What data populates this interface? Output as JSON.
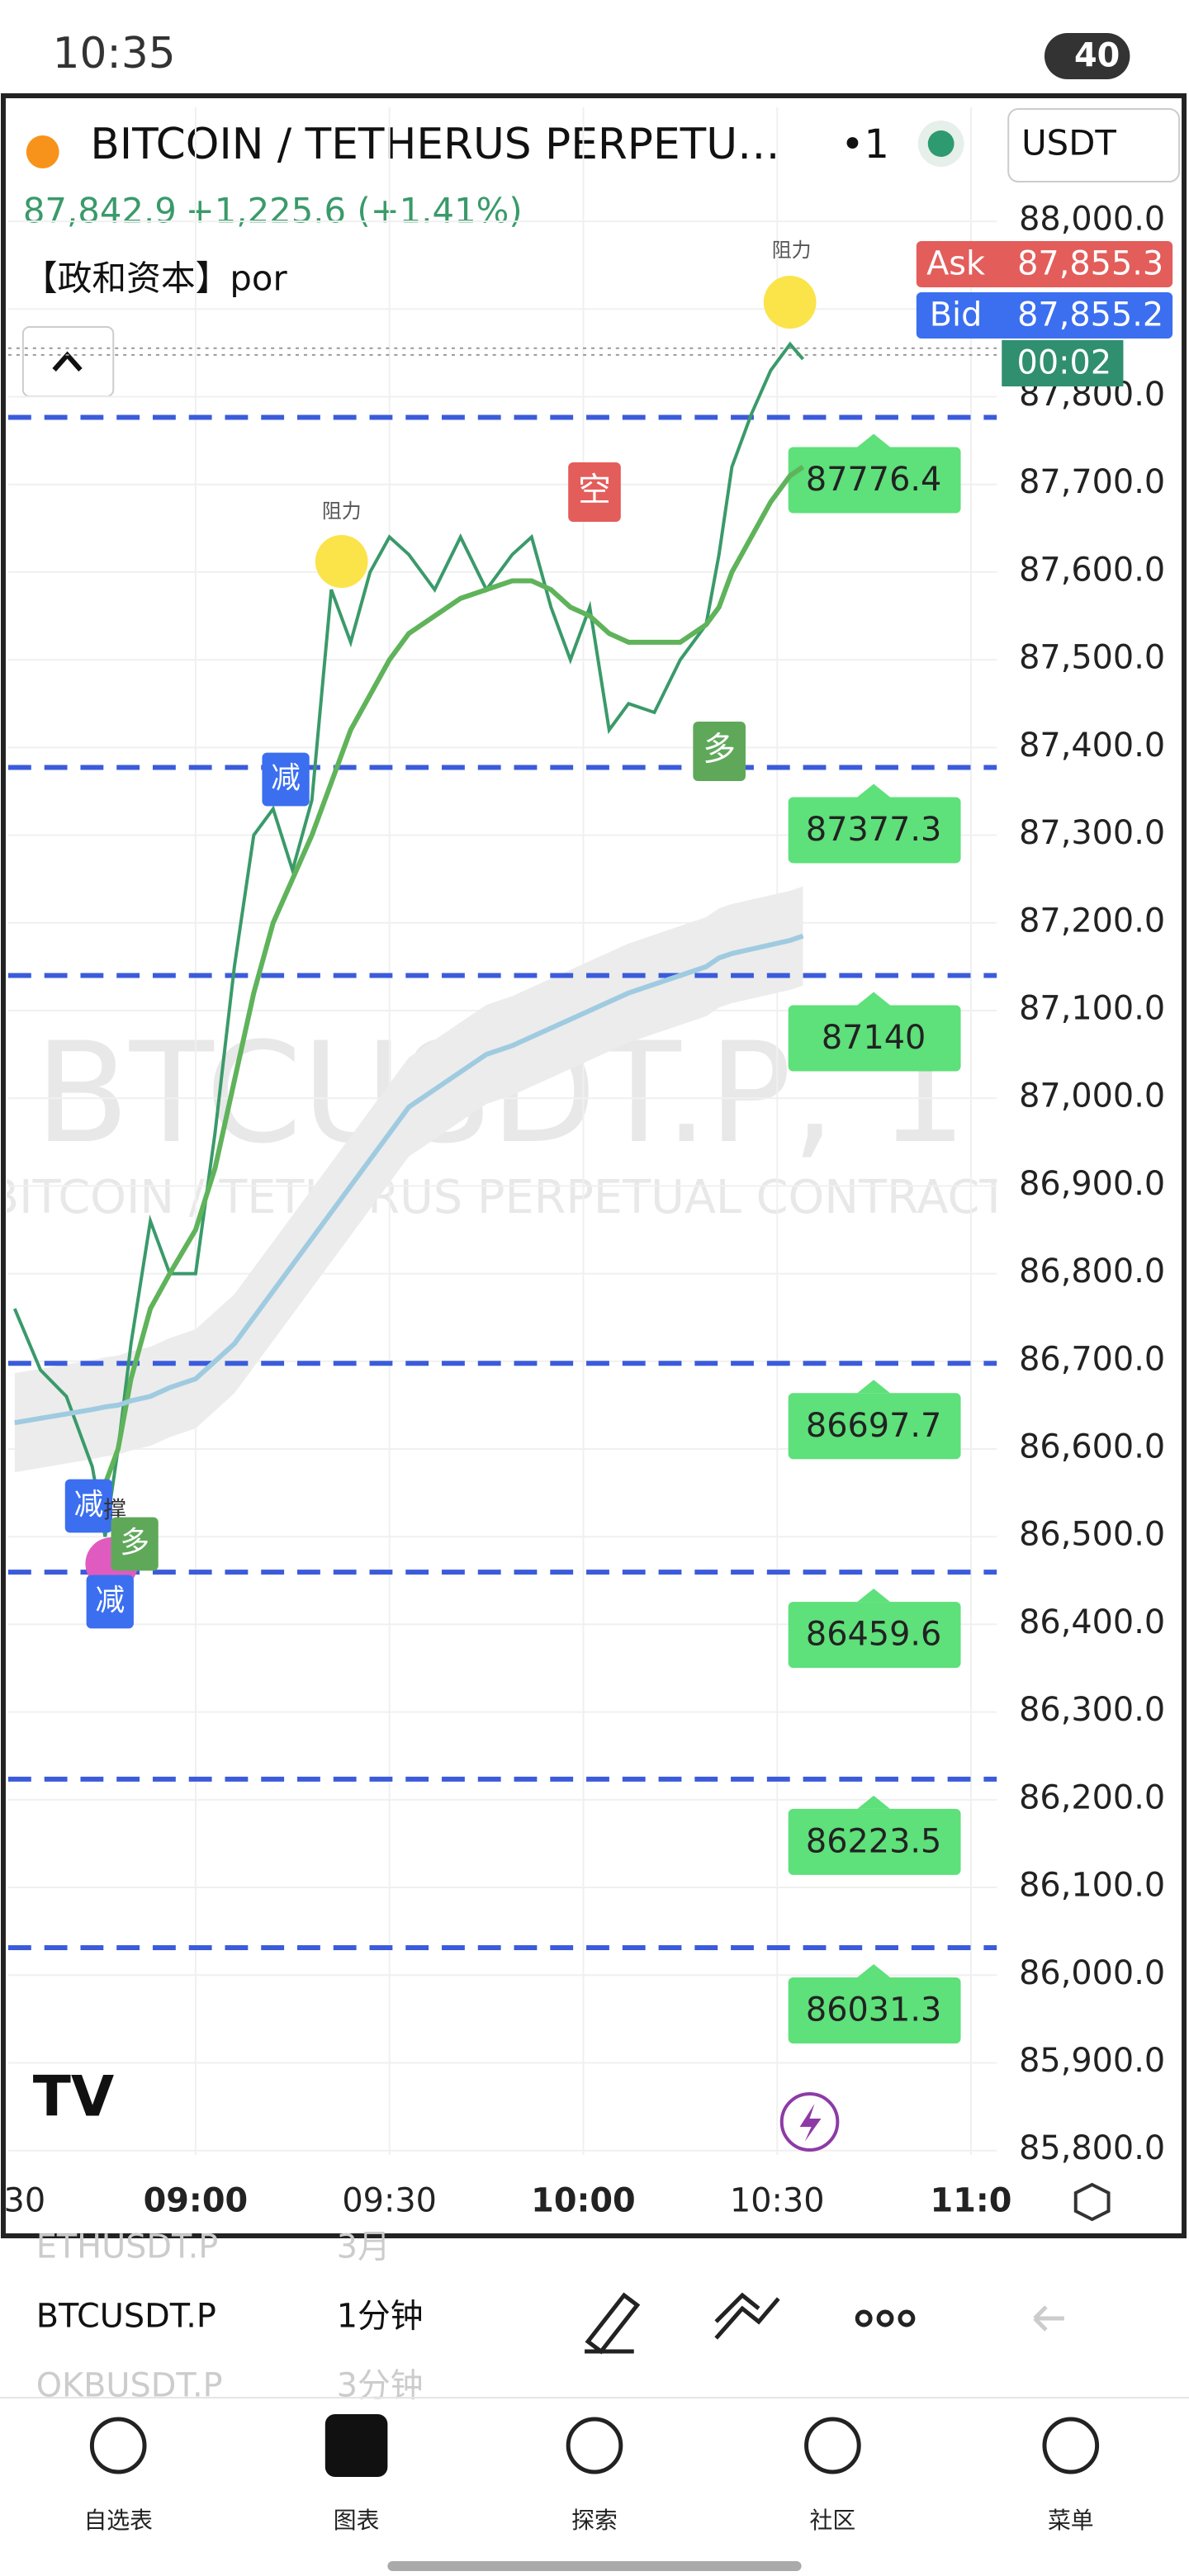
{
  "status_bar": {
    "time": "10:35",
    "battery": "40"
  },
  "header": {
    "symbol": "BITCOIN / TETHERUS PERPETU…",
    "interval": "•1",
    "currency": "USDT",
    "price": "87,842.9",
    "change": "+1,225.6 (+1.41%)",
    "indicator": "【政和资本】por",
    "countdown": "00:02"
  },
  "chart_data": {
    "type": "line",
    "watermark": "BTCUSDT.P, 1",
    "watermark_subtitle": "BITCOIN / TETHERUS PERPETUAL CONTRACT",
    "x": [
      512,
      516,
      520,
      524,
      526,
      528,
      530,
      533,
      536,
      540,
      543,
      546,
      549,
      552,
      555,
      558,
      561,
      564,
      567,
      570,
      573,
      577,
      581,
      585,
      589,
      592,
      595,
      598,
      601,
      604,
      607,
      611,
      615,
      619,
      621,
      623,
      626,
      629,
      632,
      634
    ],
    "series": [
      {
        "name": "Close",
        "color": "#3a9a6a",
        "values": [
          86760,
          86690,
          86660,
          86580,
          86500,
          86600,
          86720,
          86860,
          86800,
          86800,
          86960,
          87150,
          87300,
          87330,
          87260,
          87340,
          87580,
          87520,
          87600,
          87640,
          87620,
          87580,
          87640,
          87580,
          87620,
          87640,
          87560,
          87500,
          87560,
          87420,
          87450,
          87440,
          87500,
          87540,
          87620,
          87720,
          87780,
          87830,
          87860,
          87842.9
        ]
      },
      {
        "name": "MA",
        "color": "#5fb35a",
        "values": [
          null,
          null,
          null,
          null,
          86560,
          86600,
          86680,
          86760,
          86800,
          86850,
          86920,
          87020,
          87120,
          87200,
          87250,
          87300,
          87360,
          87420,
          87460,
          87500,
          87530,
          87550,
          87570,
          87580,
          87590,
          87590,
          87580,
          87560,
          87550,
          87530,
          87520,
          87520,
          87520,
          87540,
          87560,
          87600,
          87640,
          87680,
          87710,
          87720
        ]
      },
      {
        "name": "Long MA",
        "color": "#9fcbe0",
        "values": [
          86630,
          86635,
          86640,
          86645,
          86648,
          86650,
          86655,
          86660,
          86670,
          86680,
          86700,
          86720,
          86750,
          86780,
          86810,
          86840,
          86870,
          86900,
          86930,
          86960,
          86990,
          87010,
          87030,
          87050,
          87060,
          87070,
          87080,
          87090,
          87100,
          87110,
          87120,
          87130,
          87140,
          87150,
          87160,
          87165,
          87170,
          87175,
          87180,
          87185
        ]
      }
    ],
    "levels": {
      "color": "#3b5bdb",
      "values": [
        87776.4,
        87377.3,
        87140,
        86697.7,
        86459.6,
        86223.5,
        86031.3
      ]
    },
    "quotes": [
      {
        "name": "Ask",
        "value": 87855.3,
        "value_label": "87,855.3",
        "color": "#e35d5b"
      },
      {
        "name": "Bid",
        "value": 87855.2,
        "value_label": "87,855.2",
        "color": "#3b6ff0"
      }
    ],
    "markers": [
      "阻力",
      "阻力",
      "空",
      "多",
      "减",
      "减",
      "减",
      "撑",
      "多"
    ],
    "xlim": [
      511,
      664
    ],
    "ylim": [
      85795,
      88130
    ],
    "xticks": [
      {
        "value": 510,
        "label": "30"
      },
      {
        "value": 540,
        "label": "09:00"
      },
      {
        "value": 570,
        "label": "09:30"
      },
      {
        "value": 600,
        "label": "10:00"
      },
      {
        "value": 630,
        "label": "10:30"
      },
      {
        "value": 660,
        "label": "11:0"
      }
    ],
    "yticks": [
      {
        "value": 88000,
        "label": "88,000.0"
      },
      {
        "value": 87900,
        "label": "87,900.0"
      },
      {
        "value": 87800,
        "label": "87,800.0"
      },
      {
        "value": 87700,
        "label": "87,700.0"
      },
      {
        "value": 87600,
        "label": "87,600.0"
      },
      {
        "value": 87500,
        "label": "87,500.0"
      },
      {
        "value": 87400,
        "label": "87,400.0"
      },
      {
        "value": 87300,
        "label": "87,300.0"
      },
      {
        "value": 87200,
        "label": "87,200.0"
      },
      {
        "value": 87100,
        "label": "87,100.0"
      },
      {
        "value": 87000,
        "label": "87,000.0"
      },
      {
        "value": 86900,
        "label": "86,900.0"
      },
      {
        "value": 86800,
        "label": "86,800.0"
      },
      {
        "value": 86700,
        "label": "86,700.0"
      },
      {
        "value": 86600,
        "label": "86,600.0"
      },
      {
        "value": 86500,
        "label": "86,500.0"
      },
      {
        "value": 86400,
        "label": "86,400.0"
      },
      {
        "value": 86300,
        "label": "86,300.0"
      },
      {
        "value": 86200,
        "label": "86,200.0"
      },
      {
        "value": 86100,
        "label": "86,100.0"
      },
      {
        "value": 86000,
        "label": "86,000.0"
      },
      {
        "value": 85900,
        "label": "85,900.0"
      },
      {
        "value": 85800,
        "label": "85,800.0"
      }
    ],
    "grid": true
  },
  "symbol_list": [
    {
      "symbol": "ETHUSDT.P",
      "interval": "3月"
    },
    {
      "symbol": "BTCUSDT.P",
      "interval": "1分钟"
    },
    {
      "symbol": "OKBUSDT.P",
      "interval": "3分钟"
    }
  ],
  "tabs": [
    "自选表",
    "图表",
    "探索",
    "社区",
    "菜单"
  ]
}
